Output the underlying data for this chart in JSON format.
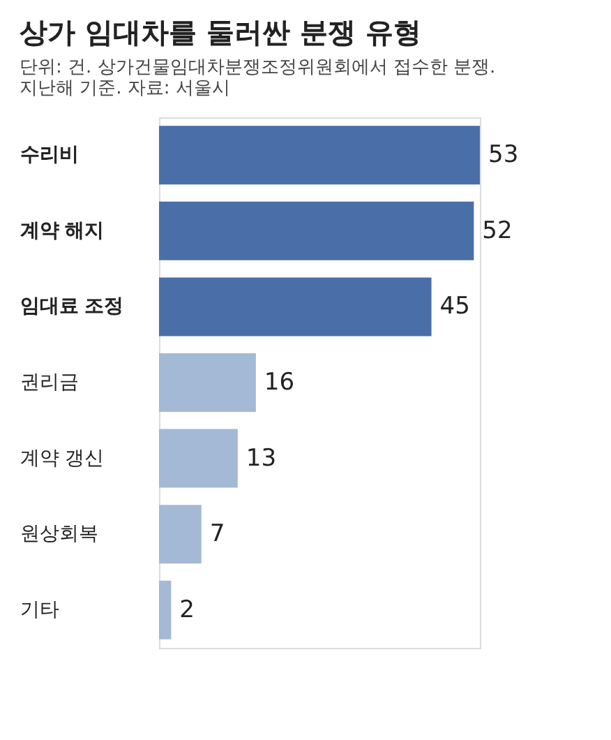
{
  "chart_data": {
    "type": "bar",
    "orientation": "horizontal",
    "title": "상가 임대차를 둘러싼 분쟁 유형",
    "subtitle": "단위: 건. 상가건물임대차분쟁조정위원회에서 접수한 분쟁. 지난해 기준.",
    "annotations": [
      "자료: 서울시"
    ],
    "categories": [
      "수리비",
      "계약 해지",
      "임대료 조정",
      "권리금",
      "계약 갱신",
      "원상회복",
      "기타"
    ],
    "values": [
      53,
      52,
      45,
      16,
      13,
      7,
      2
    ],
    "colors": [
      "#4a6ea8",
      "#4a6ea8",
      "#4a6ea8",
      "#a4b9d6",
      "#a4b9d6",
      "#a4b9d6",
      "#a4b9d6"
    ],
    "data_labels": true
  }
}
